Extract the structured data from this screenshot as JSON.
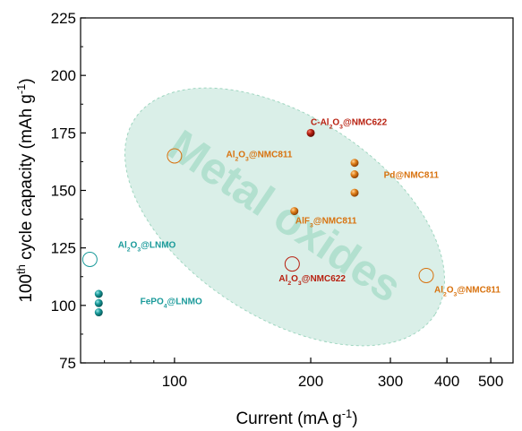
{
  "chart_data": {
    "type": "scatter",
    "x_scale": "log",
    "xlim": [
      62,
      560
    ],
    "ylim": [
      75,
      225
    ],
    "x_ticks": [
      100,
      200,
      300,
      400,
      500
    ],
    "y_ticks": [
      75,
      100,
      125,
      150,
      175,
      200,
      225
    ],
    "xlabel_parts": [
      {
        "t": "Current (mA g"
      },
      {
        "t": "-1",
        "sup": true
      },
      {
        "t": ")"
      }
    ],
    "ylabel_parts": [
      {
        "t": "100"
      },
      {
        "t": "th",
        "sup": true
      },
      {
        "t": " cycle capacity (mAh g"
      },
      {
        "t": "-1",
        "sup": true
      },
      {
        "t": ")"
      }
    ],
    "watermark": "Metal oxides",
    "colors": {
      "teal": "#1a9a9a",
      "orange": "#d8720e",
      "red": "#b82010",
      "ellipse": "#cdeae0",
      "watermark": "#a8dcc8"
    },
    "points": [
      {
        "x": 200,
        "y": 175,
        "marker": "filled",
        "color": "red"
      },
      {
        "x": 250,
        "y": 162,
        "marker": "filled",
        "color": "orange"
      },
      {
        "x": 250,
        "y": 157,
        "marker": "filled",
        "color": "orange"
      },
      {
        "x": 250,
        "y": 149,
        "marker": "filled",
        "color": "orange"
      },
      {
        "x": 184,
        "y": 141,
        "marker": "filled",
        "color": "orange"
      },
      {
        "x": 100,
        "y": 165,
        "marker": "open",
        "color": "orange"
      },
      {
        "x": 182,
        "y": 118,
        "marker": "open",
        "color": "red"
      },
      {
        "x": 360,
        "y": 113,
        "marker": "open",
        "color": "orange"
      },
      {
        "x": 65,
        "y": 120,
        "marker": "open",
        "color": "teal"
      },
      {
        "x": 68,
        "y": 105,
        "marker": "filled",
        "color": "teal"
      },
      {
        "x": 68,
        "y": 101,
        "marker": "filled",
        "color": "teal"
      },
      {
        "x": 68,
        "y": 97,
        "marker": "filled",
        "color": "teal"
      }
    ],
    "labels": [
      {
        "name": "label-c-al2o3-nmc622",
        "parts": [
          {
            "t": "C-Al"
          },
          {
            "t": "2",
            "sub": true
          },
          {
            "t": "O"
          },
          {
            "t": "3",
            "sub": true
          },
          {
            "t": "@NMC622"
          }
        ],
        "color": "red",
        "x": 200,
        "y": 178.5
      },
      {
        "name": "label-al2o3-nmc811-left",
        "parts": [
          {
            "t": "Al"
          },
          {
            "t": "2",
            "sub": true
          },
          {
            "t": "O"
          },
          {
            "t": "3",
            "sub": true
          },
          {
            "t": "@NMC811"
          }
        ],
        "color": "orange",
        "x": 130,
        "y": 164.5
      },
      {
        "name": "label-pd-nmc811",
        "parts": [
          {
            "t": "Pd@NMC811"
          }
        ],
        "color": "orange",
        "x": 290,
        "y": 155.5
      },
      {
        "name": "label-alf3-nmc811",
        "parts": [
          {
            "t": "AlF"
          },
          {
            "t": "3",
            "sub": true
          },
          {
            "t": "@NMC811"
          }
        ],
        "color": "orange",
        "x": 185,
        "y": 135.5
      },
      {
        "name": "label-al2o3-nmc622",
        "parts": [
          {
            "t": "Al"
          },
          {
            "t": "2",
            "sub": true
          },
          {
            "t": "O"
          },
          {
            "t": "3",
            "sub": true
          },
          {
            "t": "@NMC622"
          }
        ],
        "color": "red",
        "x": 170,
        "y": 110.5
      },
      {
        "name": "label-al2o3-nmc811-right",
        "parts": [
          {
            "t": "Al"
          },
          {
            "t": "2",
            "sub": true
          },
          {
            "t": "O"
          },
          {
            "t": "3",
            "sub": true
          },
          {
            "t": "@NMC811"
          }
        ],
        "color": "orange",
        "x": 375,
        "y": 105.5
      },
      {
        "name": "label-al2o3-lnmo",
        "parts": [
          {
            "t": "Al"
          },
          {
            "t": "2",
            "sub": true
          },
          {
            "t": "O"
          },
          {
            "t": "3",
            "sub": true
          },
          {
            "t": "@LNMO"
          }
        ],
        "color": "teal",
        "x": 75,
        "y": 125
      },
      {
        "name": "label-fepo4-lnmo",
        "parts": [
          {
            "t": "FePO"
          },
          {
            "t": "4",
            "sub": true
          },
          {
            "t": "@LNMO"
          }
        ],
        "color": "teal",
        "x": 84,
        "y": 100.5
      }
    ]
  }
}
